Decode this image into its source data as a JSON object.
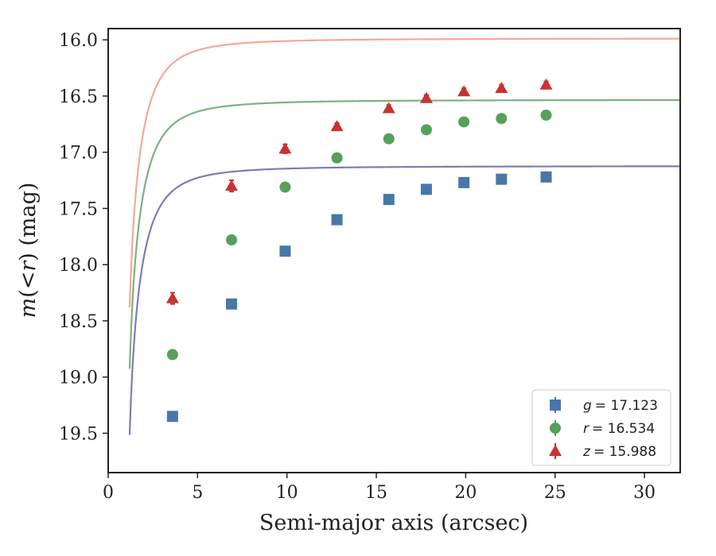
{
  "chart_data": {
    "type": "scatter",
    "title": "",
    "xlabel": "Semi-major axis (arcsec)",
    "ylabel_parts": {
      "m": "m",
      "mid": "(<",
      "r": "r",
      "end": ") (mag)"
    },
    "xlim": [
      0,
      32
    ],
    "ylim": [
      19.85,
      15.9
    ],
    "y_inverted": true,
    "xticks": [
      0,
      5,
      10,
      15,
      20,
      25,
      30
    ],
    "xtick_labels": [
      "0",
      "5",
      "10",
      "15",
      "20",
      "25",
      "30"
    ],
    "yticks": [
      16.0,
      16.5,
      17.0,
      17.5,
      18.0,
      18.5,
      19.0,
      19.5
    ],
    "ytick_labels": [
      "16.0",
      "16.5",
      "17.0",
      "17.5",
      "18.0",
      "18.5",
      "19.0",
      "19.5"
    ],
    "legend_position": "lower-right",
    "x": [
      3.6,
      6.9,
      9.9,
      12.8,
      15.7,
      17.8,
      19.9,
      22.0,
      24.5
    ],
    "series": [
      {
        "name": "g",
        "label_var": "g",
        "label_value": "= 17.123",
        "marker": "square",
        "color": "#4878a8",
        "line_color": "#7c7cbc",
        "values": [
          19.35,
          18.35,
          17.88,
          17.6,
          17.42,
          17.33,
          17.27,
          17.24,
          17.22
        ],
        "errors": [
          0.03,
          0.03,
          0.02,
          0.02,
          0.02,
          0.02,
          0.02,
          0.02,
          0.02
        ],
        "fit": {
          "m_inf": 17.123,
          "a": 1.3,
          "c": 3.3,
          "x0": 0.98
        }
      },
      {
        "name": "r",
        "label_var": "r",
        "label_value": "= 16.534",
        "marker": "circle",
        "color": "#55a05a",
        "line_color": "#7fb07f",
        "values": [
          18.8,
          17.78,
          17.31,
          17.05,
          16.88,
          16.8,
          16.73,
          16.7,
          16.67
        ],
        "errors": [
          0.03,
          0.03,
          0.02,
          0.02,
          0.02,
          0.02,
          0.02,
          0.02,
          0.02
        ],
        "fit": {
          "m_inf": 16.534,
          "a": 1.3,
          "c": 3.3,
          "x0": 0.98
        }
      },
      {
        "name": "z",
        "label_var": "z",
        "label_value": "= 15.988",
        "marker": "triangle",
        "color": "#c83232",
        "line_color": "#f4a899",
        "values": [
          18.3,
          17.3,
          16.97,
          16.77,
          16.61,
          16.52,
          16.46,
          16.43,
          16.4
        ],
        "errors": [
          0.05,
          0.05,
          0.04,
          0.03,
          0.03,
          0.03,
          0.03,
          0.03,
          0.03
        ],
        "fit": {
          "m_inf": 15.988,
          "a": 1.3,
          "c": 3.3,
          "x0": 0.98
        }
      }
    ]
  }
}
